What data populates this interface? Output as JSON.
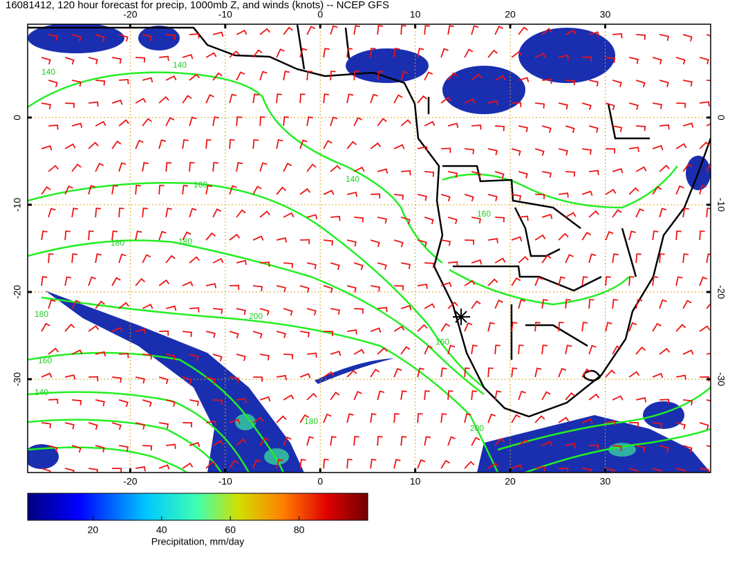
{
  "map": {
    "title": "16081412, 120 hour forecast for precip, 1000mb Z, and winds (knots) -- NCEP GFS",
    "lon_range": [
      -30.8,
      41.1
    ],
    "lat_range": [
      10.7,
      -40.7
    ],
    "lon_ticks": [
      -20,
      -10,
      0,
      10,
      20,
      30
    ],
    "lat_ticks": [
      0,
      -10,
      -20,
      -30
    ],
    "grid": true,
    "contour_labels": [
      140,
      140,
      160,
      180,
      180,
      160,
      140,
      200,
      180,
      160,
      140,
      180,
      200,
      160
    ],
    "colorbar": {
      "range": [
        1,
        100
      ],
      "ticks": [
        20,
        40,
        60,
        80
      ],
      "label": "Precipitation, mm/day"
    }
  }
}
